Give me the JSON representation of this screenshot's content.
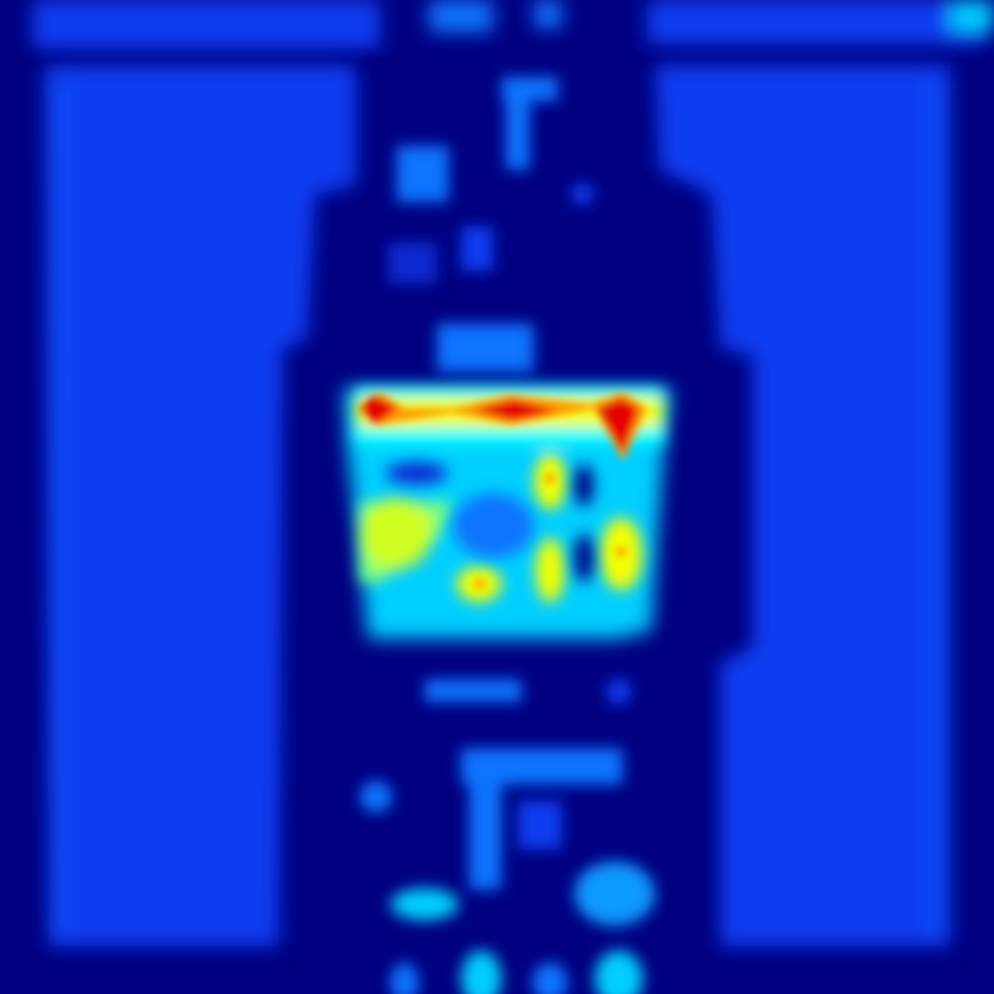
{
  "image": {
    "kind": "saliency-heatmap",
    "colormap": "jet",
    "colors": {
      "background": "#000080",
      "low": "#0a3cf0",
      "mid_low": "#0b74ff",
      "cool": "#00cfff",
      "cyan": "#00ffff",
      "green": "#7dff7a",
      "yellow": "#f4ff00",
      "orange": "#ff9a00",
      "red": "#e60000",
      "peak": "#c80000"
    },
    "text": []
  }
}
